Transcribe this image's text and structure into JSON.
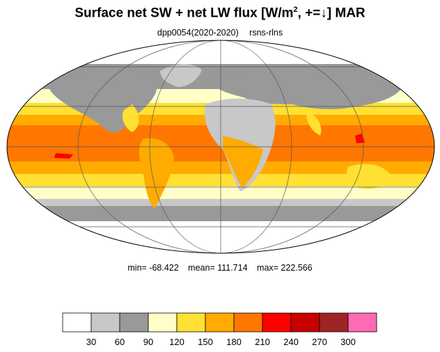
{
  "title": {
    "main": "Surface net SW + net LW flux [W/m",
    "sup": "2",
    "rest": ", +=↓]  MAR"
  },
  "subtitle": {
    "experiment": "dpp0054(2020-2020)",
    "variable": "rsns-rlns"
  },
  "stats": {
    "min": "min= -68.422",
    "mean": "mean= 111.714",
    "max": "max= 222.566"
  },
  "colorbar": {
    "colors": [
      "#ffffff",
      "#c8c8c8",
      "#999999",
      "#ffffc7",
      "#ffe033",
      "#ffab00",
      "#ff7700",
      "#ff0000",
      "#c70000",
      "#9f2424",
      "#ff6ab4"
    ],
    "ticks": [
      "30",
      "60",
      "90",
      "120",
      "150",
      "180",
      "210",
      "240",
      "270",
      "300"
    ]
  },
  "map": {
    "projection": "Mollweide",
    "ocean_base_color": "#ffab00"
  }
}
